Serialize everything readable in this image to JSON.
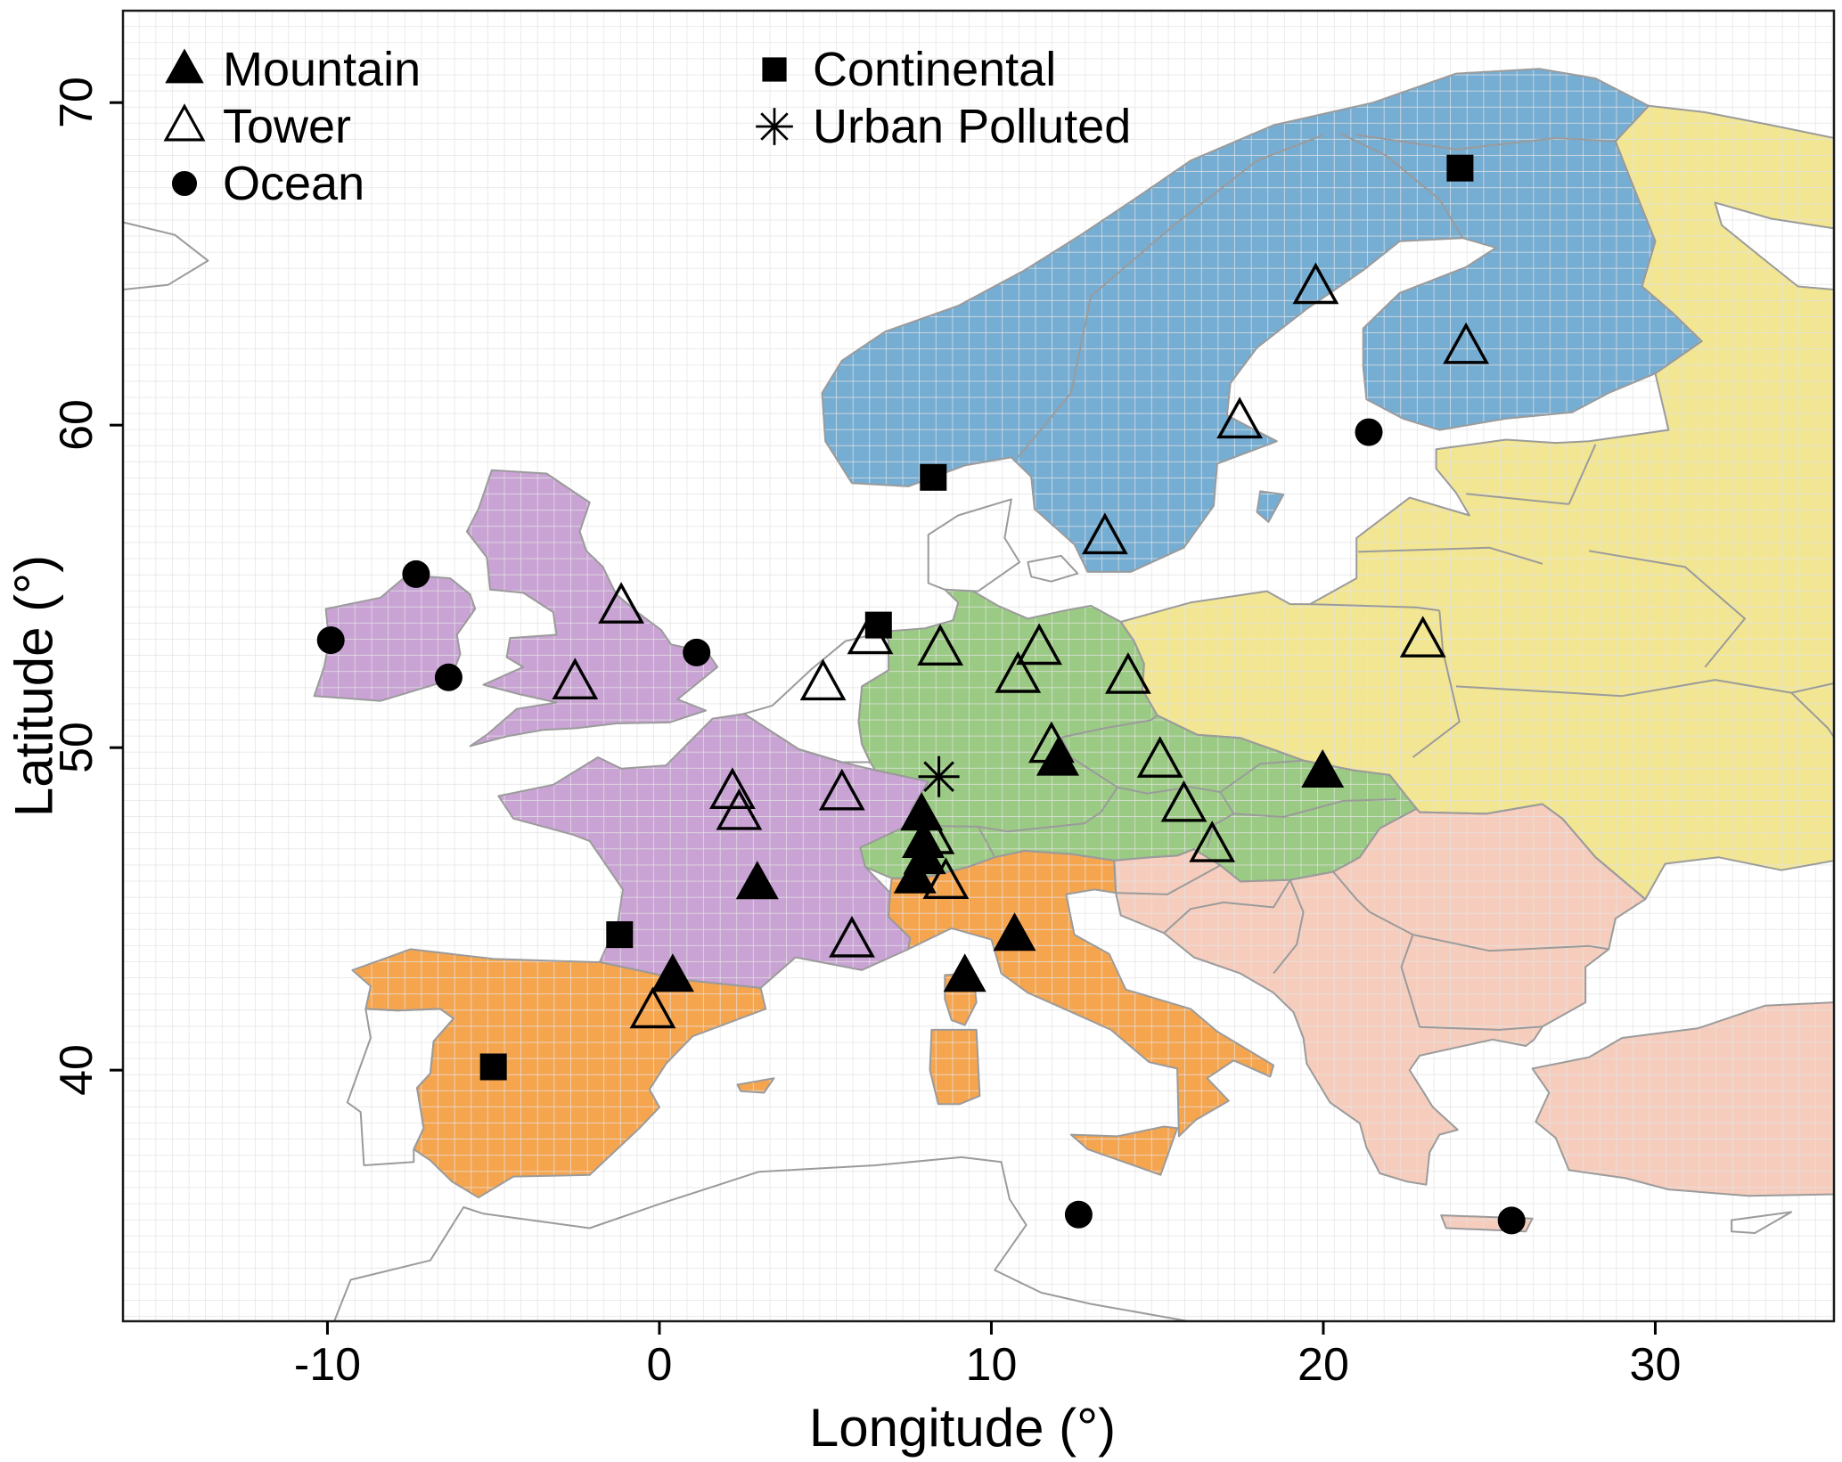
{
  "figure": {
    "xlabel": "Longitude (°)",
    "ylabel": "Latitude (°)"
  },
  "legend": {
    "items": [
      {
        "id": "mountain",
        "label": "Mountain",
        "marker": "triangle-filled"
      },
      {
        "id": "tower",
        "label": "Tower",
        "marker": "triangle-open"
      },
      {
        "id": "ocean",
        "label": "Ocean",
        "marker": "circle-filled"
      },
      {
        "id": "continental",
        "label": "Continental",
        "marker": "square-filled"
      },
      {
        "id": "urban",
        "label": "Urban Polluted",
        "marker": "asterisk"
      }
    ],
    "columns": [
      [
        "mountain",
        "tower",
        "ocean"
      ],
      [
        "continental",
        "urban"
      ]
    ]
  },
  "chart_data": {
    "type": "scatter",
    "subtype": "station-map-europe",
    "title": "",
    "xlabel": "Longitude (°)",
    "ylabel": "Latitude (°)",
    "xlim": [
      -16.2,
      35.4
    ],
    "ylim": [
      32.2,
      72.85
    ],
    "xticks": [
      {
        "v": -10,
        "label": "-10"
      },
      {
        "v": 0,
        "label": "0"
      },
      {
        "v": 10,
        "label": "10"
      },
      {
        "v": 20,
        "label": "20"
      },
      {
        "v": 30,
        "label": "30"
      }
    ],
    "yticks": [
      {
        "v": 40,
        "label": "40"
      },
      {
        "v": 50,
        "label": "50"
      },
      {
        "v": 60,
        "label": "60"
      },
      {
        "v": 70,
        "label": "70"
      }
    ],
    "grid": true,
    "grid_spacing_deg": 0.5,
    "legend_position": "inside top-left",
    "colors": {
      "marker": "#000000",
      "country_border": "#9b9b9b",
      "grid": "#e3e3e3",
      "frame": "#1a1a1a",
      "sea": "#ffffff"
    },
    "series": [
      {
        "id": "mountain",
        "name": "Mountain",
        "marker": "triangle-filled",
        "points": [
          [
            2.95,
            45.77
          ],
          [
            0.4,
            42.9
          ],
          [
            7.9,
            47.9
          ],
          [
            7.95,
            47.05
          ],
          [
            7.99,
            46.55
          ],
          [
            7.7,
            45.95
          ],
          [
            10.7,
            44.17
          ],
          [
            9.2,
            42.9
          ],
          [
            12.0,
            49.6
          ],
          [
            19.98,
            49.23
          ]
        ]
      },
      {
        "id": "tower",
        "name": "Tower",
        "marker": "triangle-open",
        "points": [
          [
            19.77,
            64.26
          ],
          [
            24.3,
            62.4
          ],
          [
            17.48,
            60.09
          ],
          [
            13.42,
            56.5
          ],
          [
            -1.15,
            54.35
          ],
          [
            -2.54,
            52.0
          ],
          [
            6.35,
            53.4
          ],
          [
            4.93,
            51.97
          ],
          [
            2.2,
            48.6
          ],
          [
            2.4,
            47.95
          ],
          [
            5.5,
            48.56
          ],
          [
            5.8,
            44.0
          ],
          [
            -0.2,
            41.8
          ],
          [
            8.46,
            53.05
          ],
          [
            11.44,
            53.07
          ],
          [
            10.8,
            52.2
          ],
          [
            14.12,
            52.17
          ],
          [
            11.81,
            50.03
          ],
          [
            15.08,
            49.57
          ],
          [
            15.8,
            48.2
          ],
          [
            16.65,
            46.95
          ],
          [
            23.0,
            53.3
          ],
          [
            8.63,
            45.81
          ],
          [
            8.2,
            47.2
          ]
        ]
      },
      {
        "id": "ocean",
        "name": "Ocean",
        "marker": "circle-filled",
        "points": [
          [
            -9.9,
            53.33
          ],
          [
            -7.33,
            55.38
          ],
          [
            -6.35,
            52.18
          ],
          [
            1.12,
            52.95
          ],
          [
            21.37,
            59.78
          ],
          [
            12.63,
            35.52
          ],
          [
            25.67,
            35.34
          ]
        ]
      },
      {
        "id": "continental",
        "name": "Continental",
        "marker": "square-filled",
        "points": [
          [
            24.12,
            67.97
          ],
          [
            8.25,
            58.38
          ],
          [
            6.6,
            53.8
          ],
          [
            -1.2,
            44.2
          ],
          [
            -5.0,
            40.1
          ]
        ]
      },
      {
        "id": "urban",
        "name": "Urban Polluted",
        "marker": "asterisk",
        "points": [
          [
            8.42,
            49.1
          ]
        ]
      }
    ],
    "map_regions": [
      {
        "id": "west",
        "label": "purple region",
        "color": "#c9a3d4",
        "countries": [
          "Ireland",
          "United Kingdom",
          "France"
        ]
      },
      {
        "id": "north",
        "label": "blue region",
        "color": "#76add3",
        "countries": [
          "Norway",
          "Sweden",
          "Finland"
        ]
      },
      {
        "id": "central",
        "label": "green region",
        "color": "#9bca84",
        "countries": [
          "Germany",
          "Switzerland",
          "Austria",
          "Czechia",
          "Slovakia",
          "Hungary"
        ]
      },
      {
        "id": "south",
        "label": "orange region",
        "color": "#f6a54f",
        "countries": [
          "Spain",
          "Italy",
          "Corsica",
          "Sardinia",
          "Sicily"
        ]
      },
      {
        "id": "east",
        "label": "yellow region",
        "color": "#f2e692",
        "countries": [
          "Poland",
          "Baltic states",
          "Belarus",
          "Ukraine",
          "Russia"
        ]
      },
      {
        "id": "southeast",
        "label": "pink region",
        "color": "#f6cdbd",
        "countries": [
          "Balkans",
          "Romania",
          "Bulgaria",
          "Greece",
          "Turkey",
          "Crete"
        ]
      }
    ]
  }
}
